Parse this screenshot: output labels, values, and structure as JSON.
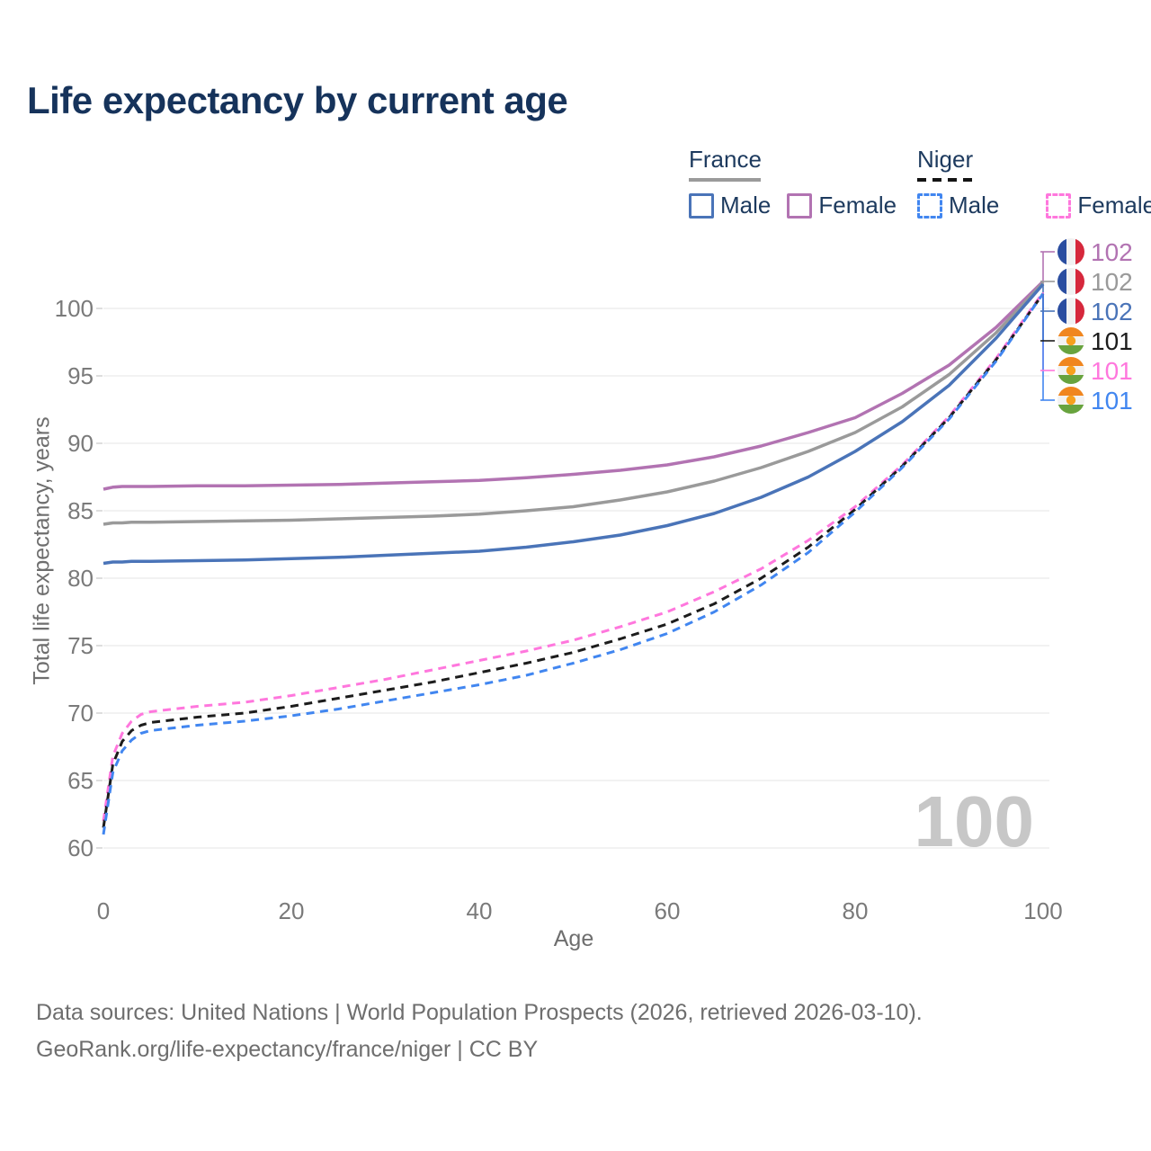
{
  "title": "Life expectancy by current age",
  "legend": {
    "groups": [
      {
        "name": "France",
        "line_style": "solid",
        "underline_color": "#9a9a9a",
        "items": [
          {
            "label": "Male",
            "color": "#4a74b8",
            "dashed": false
          },
          {
            "label": "Female",
            "color": "#b273b2",
            "dashed": false
          }
        ]
      },
      {
        "name": "Niger",
        "line_style": "dashed",
        "underline_color": "#141414",
        "items": [
          {
            "label": "Male",
            "color": "#4186f0",
            "dashed": true
          },
          {
            "label": "Female",
            "color": "#ff77dd",
            "dashed": true
          }
        ]
      }
    ]
  },
  "chart_data": {
    "type": "line",
    "title": "Life expectancy by current age",
    "xlabel": "Age",
    "ylabel": "Total life expectancy, years",
    "xlim": [
      0,
      100
    ],
    "ylim": [
      60,
      104
    ],
    "xticks": [
      0,
      20,
      40,
      60,
      80,
      100
    ],
    "yticks": [
      60,
      65,
      70,
      75,
      80,
      85,
      90,
      95,
      100
    ],
    "grid": "horizontal",
    "legend_position": "top-right",
    "watermark": "100",
    "x": [
      0,
      1,
      2,
      3,
      4,
      5,
      10,
      15,
      20,
      25,
      30,
      35,
      40,
      45,
      50,
      55,
      60,
      65,
      70,
      75,
      80,
      85,
      90,
      95,
      100
    ],
    "series": [
      {
        "name": "France Female",
        "country": "France",
        "sex": "Female",
        "color": "#b273b2",
        "dashed": false,
        "values": [
          86.6,
          86.75,
          86.8,
          86.8,
          86.8,
          86.8,
          86.85,
          86.85,
          86.9,
          86.95,
          87.05,
          87.15,
          87.25,
          87.45,
          87.7,
          88.0,
          88.4,
          89.0,
          89.8,
          90.8,
          91.9,
          93.7,
          95.8,
          98.6,
          102.0
        ]
      },
      {
        "name": "France Both sexes",
        "country": "France",
        "sex": "Both",
        "color": "#9a9a9a",
        "dashed": false,
        "values": [
          84.0,
          84.1,
          84.1,
          84.15,
          84.15,
          84.15,
          84.2,
          84.25,
          84.3,
          84.4,
          84.5,
          84.6,
          84.75,
          85.0,
          85.3,
          85.8,
          86.4,
          87.2,
          88.2,
          89.4,
          90.8,
          92.7,
          95.1,
          98.2,
          101.9
        ]
      },
      {
        "name": "France Male",
        "country": "France",
        "sex": "Male",
        "color": "#4a74b8",
        "dashed": false,
        "values": [
          81.1,
          81.2,
          81.2,
          81.25,
          81.25,
          81.25,
          81.3,
          81.35,
          81.45,
          81.55,
          81.7,
          81.85,
          82.0,
          82.3,
          82.7,
          83.2,
          83.9,
          84.8,
          86.0,
          87.5,
          89.4,
          91.6,
          94.3,
          97.8,
          101.8
        ]
      },
      {
        "name": "Niger Female",
        "country": "Niger",
        "sex": "Female",
        "color": "#ff77dd",
        "dashed": true,
        "values": [
          62.0,
          66.8,
          68.5,
          69.4,
          69.9,
          70.1,
          70.5,
          70.8,
          71.3,
          71.9,
          72.5,
          73.2,
          73.9,
          74.6,
          75.4,
          76.4,
          77.5,
          79.0,
          80.7,
          82.8,
          85.3,
          88.4,
          92.0,
          96.3,
          101.2
        ]
      },
      {
        "name": "Niger Both sexes",
        "country": "Niger",
        "sex": "Both",
        "color": "#1c1c1c",
        "dashed": true,
        "values": [
          61.5,
          66.2,
          67.9,
          68.7,
          69.1,
          69.3,
          69.7,
          70.0,
          70.5,
          71.1,
          71.7,
          72.3,
          73.0,
          73.7,
          74.5,
          75.5,
          76.6,
          78.1,
          80.0,
          82.3,
          85.1,
          88.3,
          91.9,
          96.2,
          101.1
        ]
      },
      {
        "name": "Niger Male",
        "country": "Niger",
        "sex": "Male",
        "color": "#4186f0",
        "dashed": true,
        "values": [
          61.0,
          65.6,
          67.2,
          68.0,
          68.5,
          68.7,
          69.1,
          69.4,
          69.8,
          70.3,
          70.9,
          71.5,
          72.1,
          72.8,
          73.7,
          74.7,
          75.9,
          77.5,
          79.5,
          81.9,
          84.9,
          88.2,
          91.8,
          96.1,
          101.1
        ]
      }
    ],
    "end_labels": [
      {
        "text": "102",
        "color": "#b273b2",
        "flag": "france",
        "tip_value": 102.0
      },
      {
        "text": "102",
        "color": "#9a9a9a",
        "flag": "france",
        "tip_value": 101.9
      },
      {
        "text": "102",
        "color": "#4a74b8",
        "flag": "france",
        "tip_value": 101.8
      },
      {
        "text": "101",
        "color": "#1c1c1c",
        "flag": "niger",
        "tip_value": 101.1
      },
      {
        "text": "101",
        "color": "#ff77dd",
        "flag": "niger",
        "tip_value": 101.2
      },
      {
        "text": "101",
        "color": "#4186f0",
        "flag": "niger",
        "tip_value": 101.1
      }
    ],
    "flag_colors": {
      "france": {
        "left": "#2a4da0",
        "mid": "#f2f2f2",
        "right": "#d6283c"
      },
      "niger": {
        "top": "#f0861f",
        "mid": "#f2f2f2",
        "bottom": "#68a33e",
        "dot": "#f7a01d"
      }
    },
    "style_colors": {
      "grid": "#e9e9e9",
      "tick": "#cccccc",
      "tick_label": "#7a7a7a",
      "watermark": "#c7c7c7",
      "title": "#16335b",
      "axis_title": "#6e6e6e"
    }
  },
  "footer": {
    "line1": "Data sources: United Nations | World Population Prospects (2026, retrieved 2026-03-10).",
    "line2": "GeoRank.org/life-expectancy/france/niger | CC BY"
  }
}
